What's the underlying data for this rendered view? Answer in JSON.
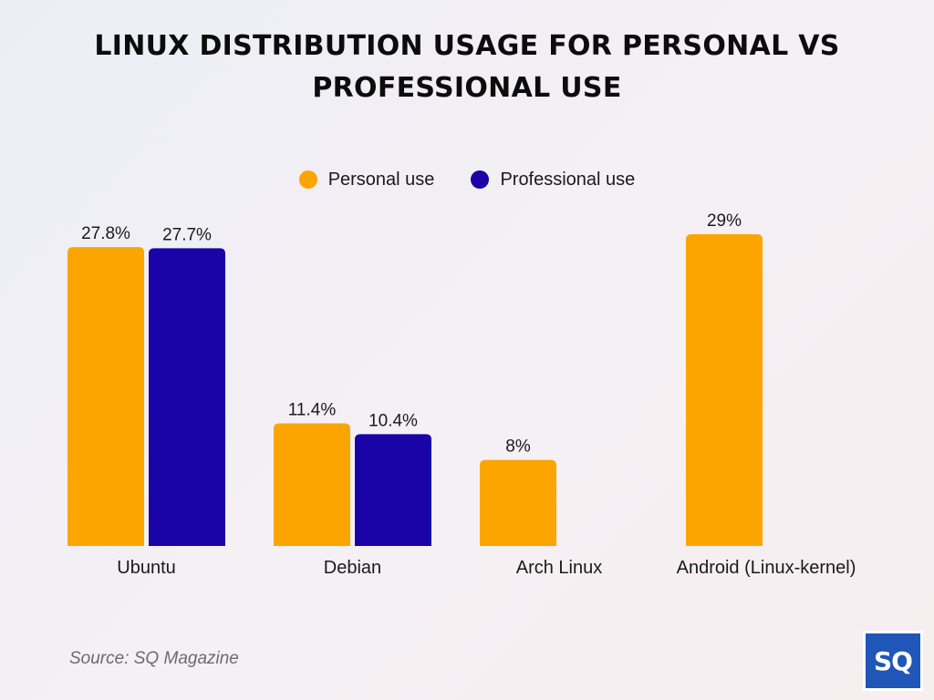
{
  "title": "LINUX DISTRIBUTION USAGE FOR PERSONAL VS PROFESSIONAL USE",
  "source": "Source: SQ Magazine",
  "logo_text": "SQ",
  "colors": {
    "personal": "#fca500",
    "professional": "#1a04a8"
  },
  "chart_data": {
    "type": "bar",
    "title": "LINUX DISTRIBUTION USAGE FOR PERSONAL VS PROFESSIONAL USE",
    "categories": [
      "Ubuntu",
      "Debian",
      "Arch Linux",
      "Android (Linux-kernel)"
    ],
    "series": [
      {
        "name": "Personal use",
        "values": [
          27.8,
          11.4,
          8,
          29
        ],
        "labels": [
          "27.8%",
          "11.4%",
          "8%",
          "29%"
        ]
      },
      {
        "name": "Professional use",
        "values": [
          27.7,
          10.4,
          null,
          null
        ],
        "labels": [
          "27.7%",
          "10.4%",
          null,
          null
        ]
      }
    ],
    "xlabel": "",
    "ylabel": "",
    "ylim": [
      0,
      29
    ],
    "grid": false,
    "legend_position": "top"
  }
}
